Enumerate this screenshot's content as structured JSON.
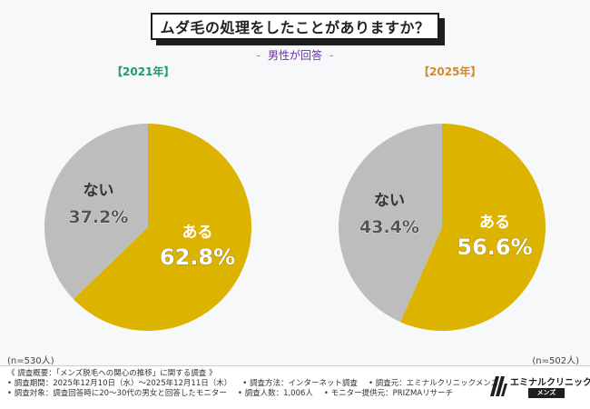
{
  "title": "ムダ毛の処理をしたことがありますか？",
  "subtitle": "男性が回答",
  "subtitle_dash": "-",
  "colors": {
    "yes": "#dcb400",
    "no": "#bdbdbd",
    "year2021": "#1f9a6a",
    "year2025": "#d4892a"
  },
  "chart_data": [
    {
      "type": "pie",
      "title": "【2021年】",
      "n": "(n=530人)",
      "slices": [
        {
          "label": "ある",
          "value": 62.8,
          "display": "62.8%",
          "color": "#dcb400"
        },
        {
          "label": "ない",
          "value": 37.2,
          "display": "37.2%",
          "color": "#bdbdbd"
        }
      ]
    },
    {
      "type": "pie",
      "title": "【2025年】",
      "n": "(n=502人)",
      "slices": [
        {
          "label": "ある",
          "value": 56.6,
          "display": "56.6%",
          "color": "#dcb400"
        },
        {
          "label": "ない",
          "value": 43.4,
          "display": "43.4%",
          "color": "#bdbdbd"
        }
      ]
    }
  ],
  "footer": {
    "line1": "《 調査概要：「メンズ脱毛への関心の推移」に関する調査 》",
    "line2a": "• 調査期間：2025年12月10日（水）〜2025年12月11日（木）",
    "line2b": "• 調査方法：インターネット調査",
    "line2c": "• 調査元：エミナルクリニックメンズ",
    "line3a": "• 調査対象：調査回答時に20〜30代の男女と回答したモニター",
    "line3b": "• 調査人数：1,006人",
    "line3c": "• モニター提供元：PRIZMAリサーチ"
  },
  "logo": {
    "name": "エミナルクリニック",
    "sub": "メンズ"
  }
}
